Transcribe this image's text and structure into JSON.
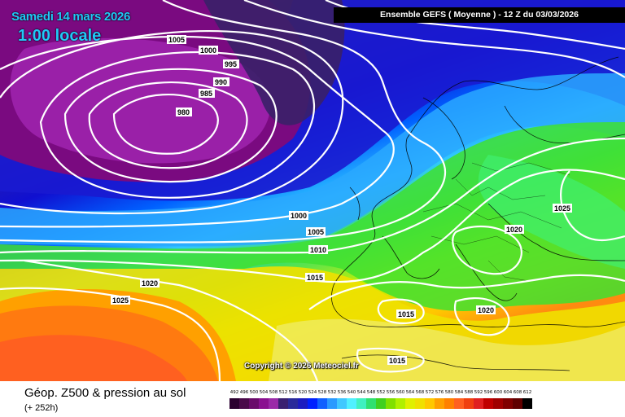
{
  "header": {
    "date": "Samedi 14 mars 2026",
    "time": "1:00 locale",
    "run_info": "Ensemble GEFS  ( Moyenne )  - 12 Z du 03/03/2026"
  },
  "footer": {
    "parameter": "Géop. Z500 & pression au sol",
    "lead_time": "(+ 252h)",
    "copyright": "Copyright © 2026 Meteociel.fr"
  },
  "isobars": {
    "labels": [
      "1005",
      "1000",
      "995",
      "990",
      "985",
      "980",
      "1000",
      "1005",
      "1010",
      "1015",
      "1020",
      "1025",
      "1015",
      "1020",
      "1020",
      "1025",
      "1015"
    ]
  },
  "legend": {
    "values": [
      "492",
      "496",
      "500",
      "504",
      "508",
      "512",
      "516",
      "520",
      "524",
      "528",
      "532",
      "536",
      "540",
      "544",
      "548",
      "552",
      "556",
      "560",
      "564",
      "568",
      "572",
      "576",
      "580",
      "584",
      "588",
      "592",
      "596",
      "600",
      "604",
      "608",
      "612"
    ],
    "colors": [
      "#2b0030",
      "#4a0a4a",
      "#6a0a6a",
      "#8a1090",
      "#9a2aa8",
      "#3a2070",
      "#2a2a9a",
      "#1c1cc0",
      "#0020ff",
      "#1060ff",
      "#2a9aff",
      "#40c8ff",
      "#50f0ff",
      "#40f0c0",
      "#30e070",
      "#40d020",
      "#80e000",
      "#b0f000",
      "#e0f000",
      "#f0e000",
      "#ffc800",
      "#ffa000",
      "#ff8000",
      "#ff6020",
      "#f04010",
      "#e02020",
      "#c00000",
      "#a00000",
      "#800000",
      "#600000",
      "#000000"
    ]
  }
}
